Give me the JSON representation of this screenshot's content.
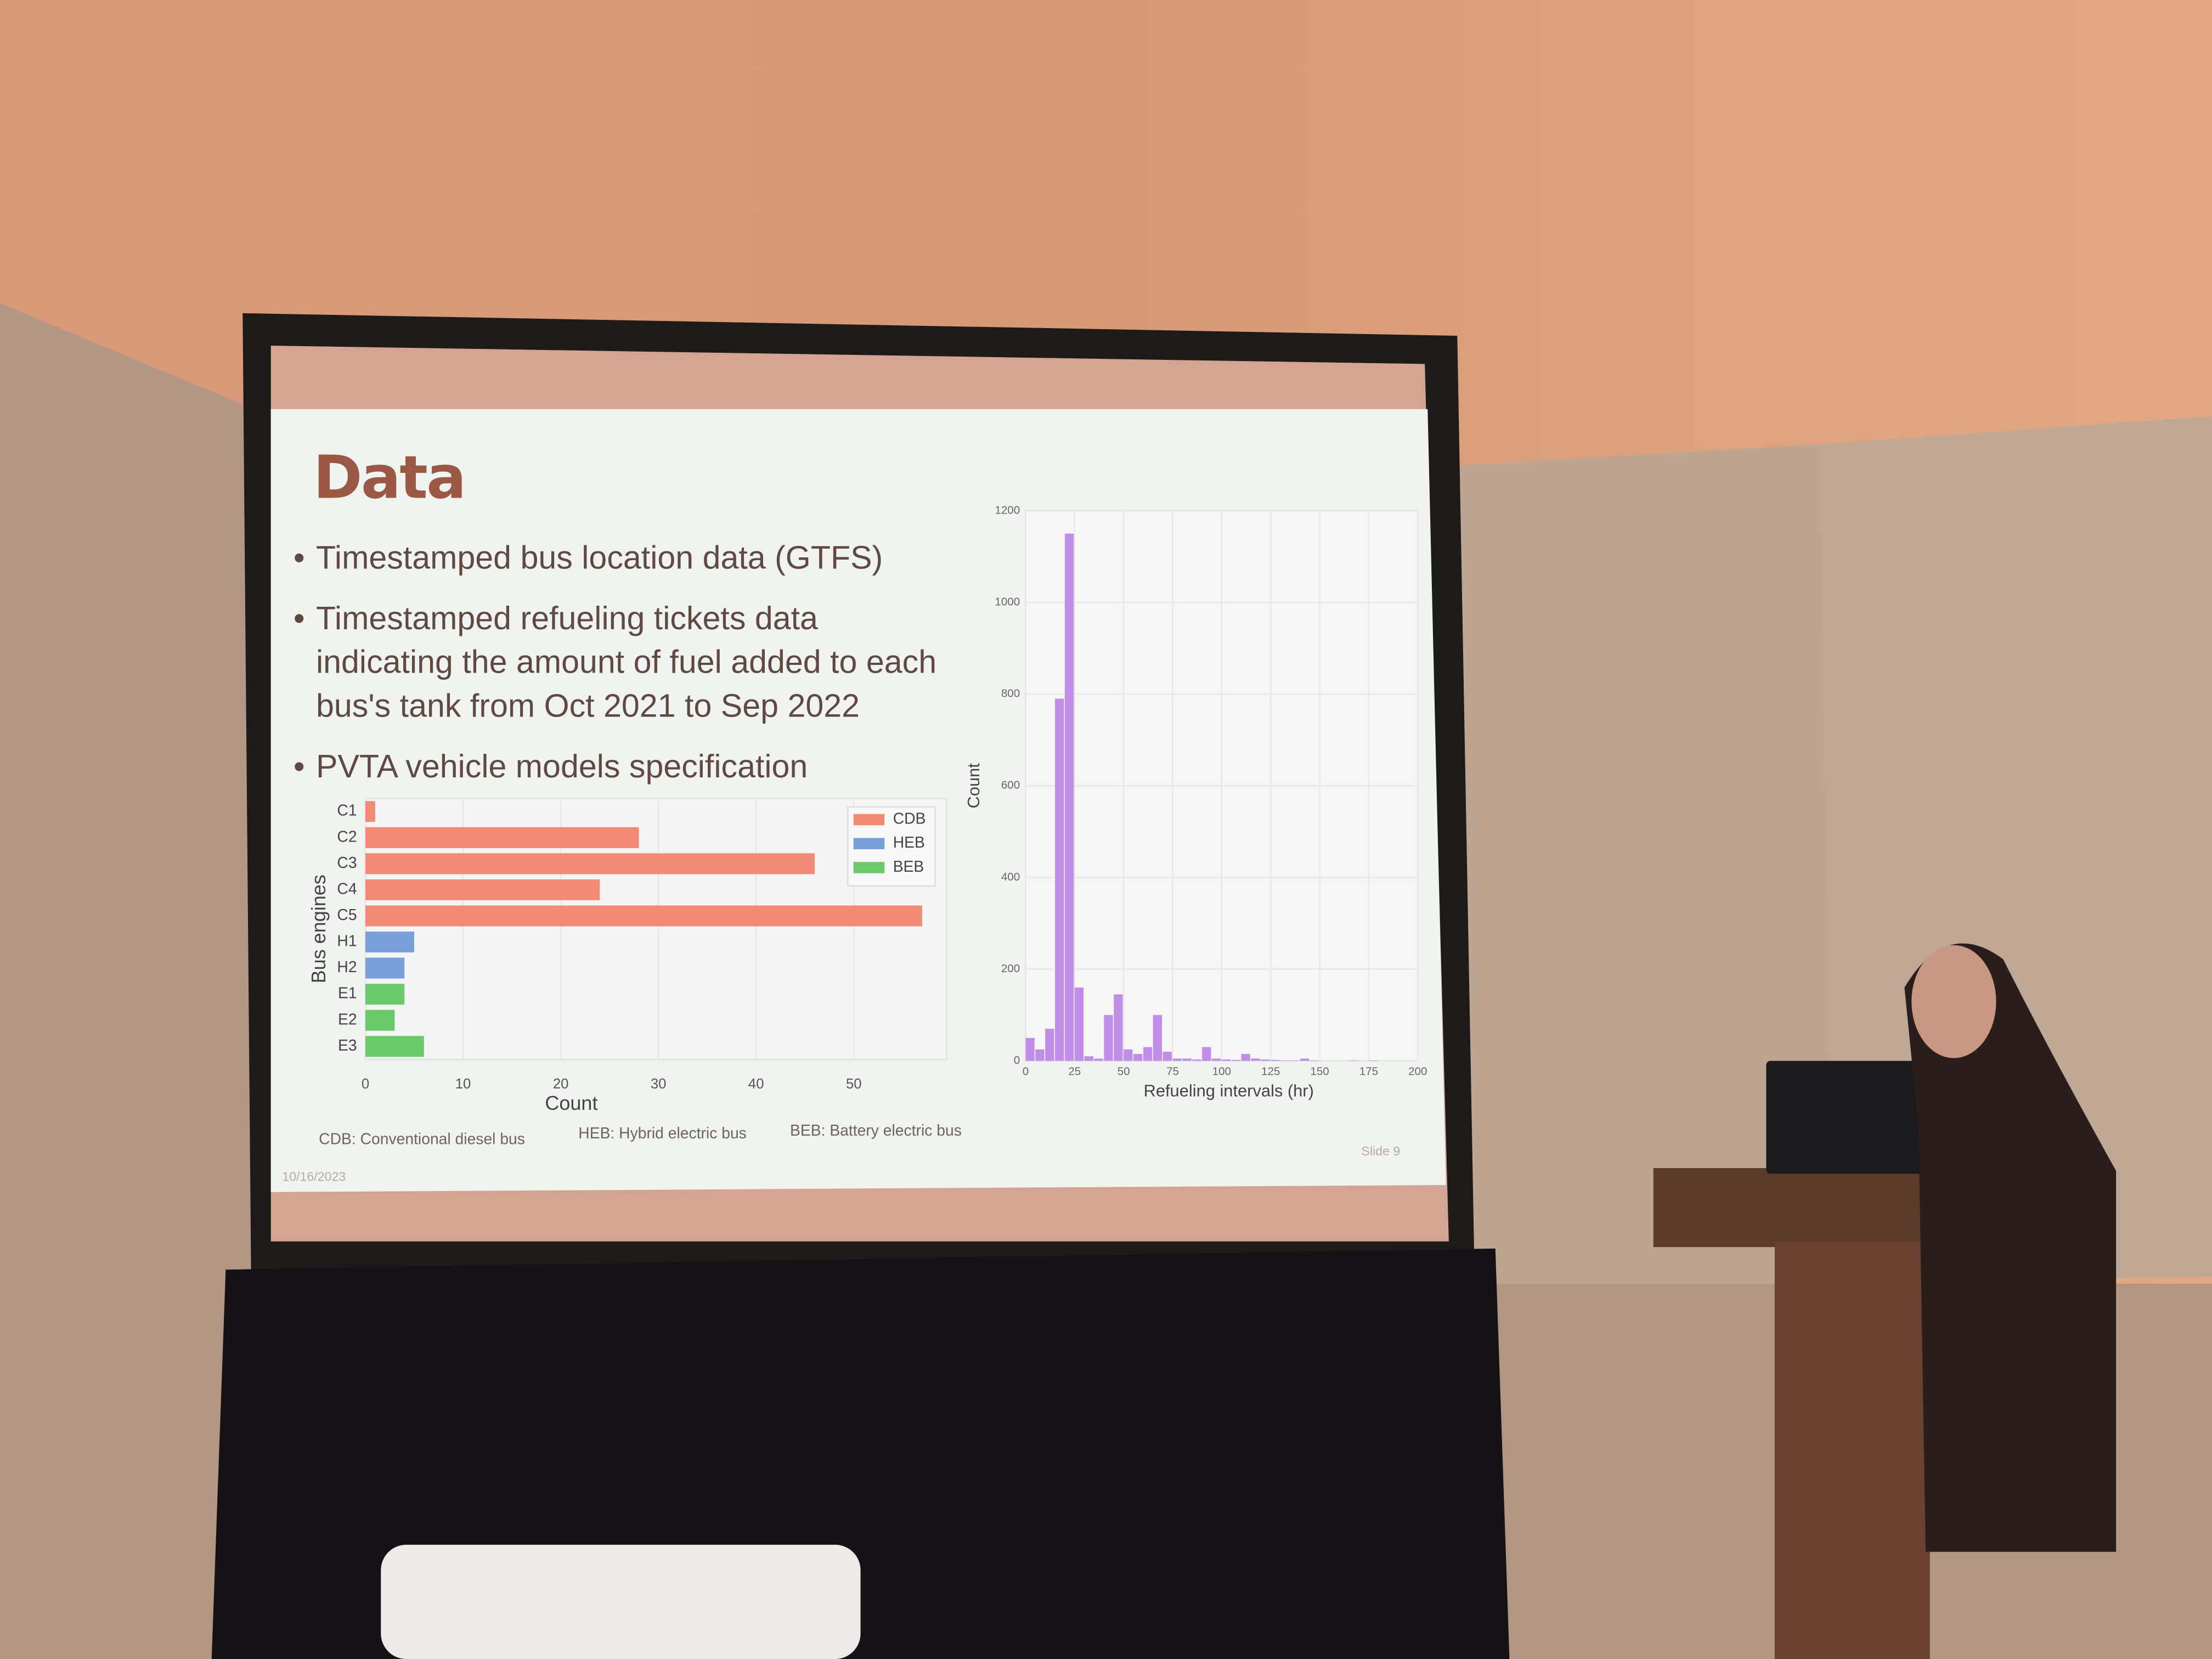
{
  "slide": {
    "title": "Data",
    "bullets": [
      "Timestamped bus location data (GTFS)",
      "Timestamped refueling tickets data indicating the amount of fuel added to each bus's tank from Oct 2021 to Sep 2022",
      "PVTA vehicle models specification"
    ],
    "footnotes": [
      "CDB: Conventional diesel bus",
      "HEB: Hybrid electric bus",
      "BEB: Battery electric bus"
    ],
    "date": "10/16/2023",
    "slide_number": "Slide 9"
  },
  "chart_data": [
    {
      "type": "barh",
      "xlabel": "Count",
      "ylabel": "Bus engines",
      "categories": [
        "C1",
        "C2",
        "C3",
        "C4",
        "C5",
        "H1",
        "H2",
        "E1",
        "E2",
        "E3"
      ],
      "series": [
        {
          "name": "CDB",
          "color": "#f28b75",
          "values": [
            1,
            28,
            46,
            24,
            57,
            null,
            null,
            null,
            null,
            null
          ]
        },
        {
          "name": "HEB",
          "color": "#7b9fd9",
          "values": [
            null,
            null,
            null,
            null,
            null,
            5,
            4,
            null,
            null,
            null
          ]
        },
        {
          "name": "BEB",
          "color": "#6cc96a",
          "values": [
            null,
            null,
            null,
            null,
            null,
            null,
            null,
            4,
            3,
            6
          ]
        }
      ],
      "xlim": [
        0,
        59.5
      ],
      "xticks": [
        0,
        10,
        20,
        30,
        40,
        50
      ],
      "grid": true,
      "legend": "top-right"
    },
    {
      "type": "histogram",
      "xlabel": "Refueling intervals (hr)",
      "ylabel": "Count",
      "color": "#c08ee8",
      "bins": [
        0,
        5,
        10,
        15,
        20,
        25,
        30,
        35,
        40,
        45,
        50,
        55,
        60,
        65,
        70,
        75,
        80,
        85,
        90,
        95,
        100,
        105,
        110,
        115,
        120,
        125,
        130,
        135,
        140,
        145,
        150,
        155,
        160,
        165,
        170,
        175,
        180,
        185,
        190,
        195,
        200
      ],
      "values": [
        50,
        25,
        70,
        790,
        1150,
        160,
        10,
        5,
        100,
        145,
        25,
        15,
        30,
        100,
        20,
        5,
        5,
        3,
        30,
        5,
        3,
        2,
        15,
        5,
        3,
        2,
        1,
        1,
        5,
        1,
        0,
        0,
        0,
        1,
        0,
        1,
        0,
        0,
        0,
        0
      ],
      "xlim": [
        0,
        200
      ],
      "ylim": [
        0,
        1200
      ],
      "xticks": [
        0,
        25,
        50,
        75,
        100,
        125,
        150,
        175,
        200
      ],
      "yticks": [
        0,
        200,
        400,
        600,
        800,
        1000,
        1200
      ],
      "grid": true
    }
  ]
}
